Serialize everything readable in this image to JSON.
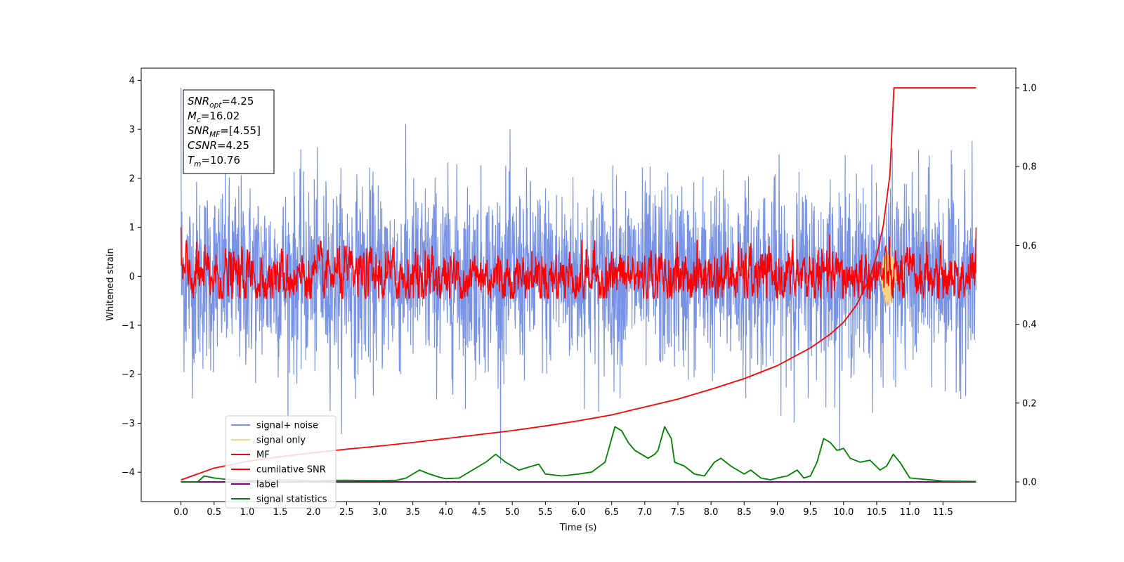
{
  "chart_data": {
    "type": "line",
    "xlabel": "Time (s)",
    "ylabel": "Whitened strain",
    "xlim": [
      -0.6,
      12.6
    ],
    "ylim": [
      -4.6,
      4.25
    ],
    "y2lim": [
      -0.05,
      1.05
    ],
    "x_ticks": [
      0.0,
      0.5,
      1.0,
      1.5,
      2.0,
      2.5,
      3.0,
      3.5,
      4.0,
      4.5,
      5.0,
      5.5,
      6.0,
      6.5,
      7.0,
      7.5,
      8.0,
      8.5,
      9.0,
      9.5,
      10.0,
      10.5,
      11.0,
      11.5
    ],
    "x_tick_labels": [
      "0.0",
      "0.5",
      "1.0",
      "1.5",
      "2.0",
      "2.5",
      "3.0",
      "3.5",
      "4.0",
      "4.5",
      "5.0",
      "5.5",
      "6.0",
      "6.5",
      "7.0",
      "7.5",
      "8.0",
      "8.5",
      "9.0",
      "9.5",
      "10.0",
      "10.5",
      "11.0",
      "11.5"
    ],
    "y_ticks": [
      4,
      3,
      2,
      1,
      0,
      -1,
      -2,
      -3,
      -4
    ],
    "y_tick_labels": [
      "4",
      "3",
      "2",
      "1",
      "0",
      "−1",
      "−2",
      "−3",
      "−4"
    ],
    "y2_ticks": [
      1.0,
      0.8,
      0.6,
      0.4,
      0.2,
      0.0
    ],
    "y2_tick_labels": [
      "1.0",
      "0.8",
      "0.6",
      "0.4",
      "0.2",
      "0.0"
    ],
    "legend_position": "lower-left",
    "grid": false,
    "series": [
      {
        "name": "signal+ noise",
        "color": "#7892e6",
        "axis": "left",
        "x_range": [
          0,
          12
        ],
        "amplitude_std": 0.95,
        "peak_max": 3.85,
        "peak_min": -4.2
      },
      {
        "name": "signal only",
        "color": "#ffd27f",
        "axis": "left",
        "x_range": [
          10.55,
          10.8
        ],
        "peak_max": 0.65,
        "peak_min": -0.65
      },
      {
        "name": "MF",
        "color": "#ff0000",
        "axis": "left",
        "x_range": [
          0,
          12
        ],
        "amplitude_std": 0.27,
        "peak_max": 1.0,
        "peak_min": -0.45
      },
      {
        "name": "cumilative SNR",
        "color": "#ff0000",
        "axis": "right",
        "x": [
          0,
          0.5,
          1,
          1.5,
          2,
          2.5,
          3,
          3.5,
          4,
          4.5,
          5,
          5.5,
          6,
          6.5,
          7,
          7.5,
          8,
          8.5,
          9,
          9.5,
          9.8,
          10,
          10.2,
          10.4,
          10.5,
          10.6,
          10.7,
          10.76,
          12
        ],
        "y": [
          0.005,
          0.035,
          0.052,
          0.064,
          0.074,
          0.083,
          0.091,
          0.1,
          0.11,
          0.12,
          0.13,
          0.142,
          0.155,
          0.17,
          0.19,
          0.21,
          0.235,
          0.262,
          0.295,
          0.34,
          0.375,
          0.405,
          0.45,
          0.52,
          0.575,
          0.65,
          0.78,
          1.0,
          1.0
        ]
      },
      {
        "name": "label",
        "color": "#7f007f",
        "axis": "right",
        "x": [
          0,
          12
        ],
        "y": [
          0.0,
          0.0
        ]
      },
      {
        "name": "signal statistics",
        "color": "#008000",
        "axis": "right",
        "x": [
          0,
          0.25,
          0.35,
          0.5,
          0.75,
          1,
          1.5,
          2,
          2.5,
          3,
          3.25,
          3.4,
          3.6,
          3.75,
          3.9,
          4,
          4.2,
          4.4,
          4.6,
          4.75,
          4.9,
          5,
          5.1,
          5.3,
          5.4,
          5.5,
          5.75,
          6,
          6.2,
          6.4,
          6.5,
          6.55,
          6.65,
          6.75,
          6.85,
          6.95,
          7.05,
          7.15,
          7.2,
          7.3,
          7.4,
          7.45,
          7.6,
          7.75,
          7.9,
          8.05,
          8.15,
          8.3,
          8.5,
          8.6,
          8.75,
          8.9,
          9.0,
          9.15,
          9.3,
          9.4,
          9.5,
          9.6,
          9.7,
          9.8,
          9.9,
          10.0,
          10.1,
          10.25,
          10.4,
          10.55,
          10.65,
          10.75,
          10.85,
          11.0,
          11.5,
          12
        ],
        "y": [
          0.0,
          0.0,
          0.015,
          0.01,
          0.005,
          0.003,
          0.005,
          0.003,
          0.004,
          0.003,
          0.004,
          0.01,
          0.03,
          0.02,
          0.012,
          0.008,
          0.01,
          0.03,
          0.05,
          0.07,
          0.05,
          0.04,
          0.03,
          0.04,
          0.045,
          0.02,
          0.015,
          0.02,
          0.025,
          0.05,
          0.11,
          0.14,
          0.13,
          0.1,
          0.08,
          0.07,
          0.06,
          0.07,
          0.08,
          0.14,
          0.11,
          0.05,
          0.04,
          0.02,
          0.015,
          0.05,
          0.06,
          0.04,
          0.02,
          0.03,
          0.01,
          0.005,
          0.01,
          0.015,
          0.03,
          0.01,
          0.015,
          0.05,
          0.11,
          0.1,
          0.08,
          0.085,
          0.06,
          0.05,
          0.055,
          0.03,
          0.04,
          0.07,
          0.05,
          0.01,
          0.002,
          0.001
        ]
      }
    ]
  },
  "annotation": {
    "lines": [
      {
        "main": "SNR",
        "sub": "opt",
        "value": "=4.25"
      },
      {
        "main": "M",
        "sub": "c",
        "value": "=16.02"
      },
      {
        "main": "SNR",
        "sub": "MF",
        "value": "=[4.55]"
      },
      {
        "main": "CSNR",
        "sub": "",
        "value": "=4.25"
      },
      {
        "main": "T",
        "sub": "m",
        "value": "=10.76"
      }
    ]
  }
}
